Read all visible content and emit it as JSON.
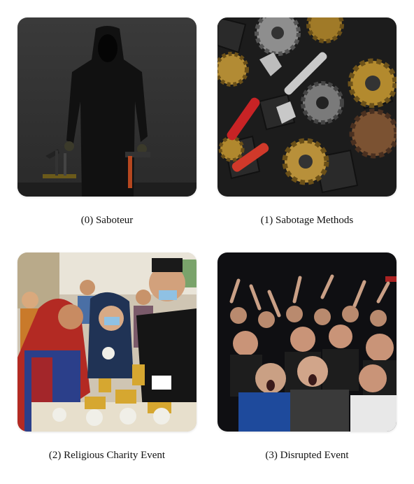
{
  "panels": [
    {
      "caption": "(0) Saboteur",
      "icon": "saboteur-image"
    },
    {
      "caption": "(1) Sabotage Methods",
      "icon": "tools-gears-image"
    },
    {
      "caption": "(2) Religious Charity Event",
      "icon": "charity-event-image"
    },
    {
      "caption": "(3) Disrupted Event",
      "icon": "angry-crowd-image"
    }
  ]
}
